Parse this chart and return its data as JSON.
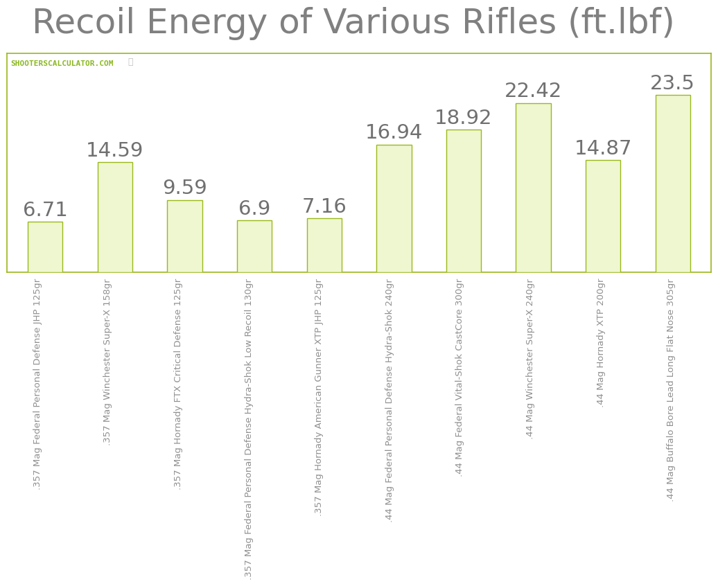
{
  "title": "Recoil Energy of Various Rifles (ft.lbf)",
  "categories": [
    ".357 Mag Federal Personal Defense JHP 125gr",
    ".357 Mag Winchester Super-X 158gr",
    ".357 Mag Hornady FTX Critical Defense 125gr",
    ".357 Mag Federal Personal Defense Hydra-Shok Low Recoil 130gr",
    ".357 Mag Hornady American Gunner XTP JHP 125gr",
    ".44 Mag Federal Personal Defense Hydra-Shok 240gr",
    ".44 Mag Federal Vital-Shok CastCore 300gr",
    ".44 Mag Winchester Super-X 240gr",
    ".44 Mag Hornady XTP 200gr",
    ".44 Mag Buffalo Bore Lead Long Flat Nose 305gr"
  ],
  "values": [
    6.71,
    14.59,
    9.59,
    6.9,
    7.16,
    16.94,
    18.92,
    22.42,
    14.87,
    23.5
  ],
  "bar_color": "#eef7d0",
  "bar_edge_color": "#9ab81a",
  "title_color": "#808080",
  "title_fontsize": 36,
  "label_fontsize": 9.5,
  "value_fontsize": 21,
  "value_color": "#707070",
  "watermark_text": "SHOOTERSCALCULATOR.COM",
  "watermark_color": "#8ab820",
  "watermark_fontsize": 8,
  "background_color": "#ffffff",
  "plot_bg_color": "#ffffff",
  "grid_color": "#cccccc",
  "border_color": "#9ab81a",
  "ylim": [
    0,
    29
  ],
  "crosshair_color": "#c0c0c0"
}
